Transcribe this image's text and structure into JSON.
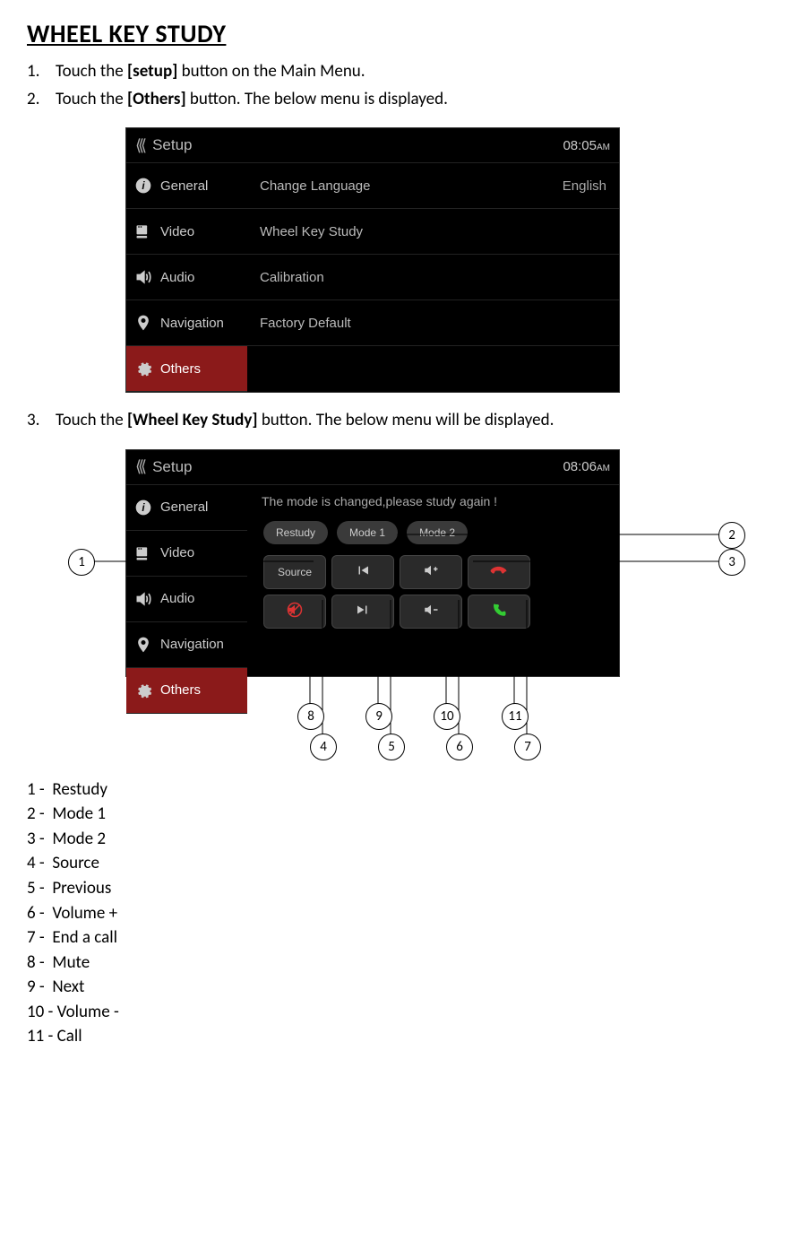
{
  "title": "WHEEL KEY STUDY ",
  "steps_a": [
    {
      "n": "1.",
      "pre": "Touch the ",
      "bold": "[setup]",
      "post": " button on the Main Menu."
    },
    {
      "n": "2.",
      "pre": "Touch the ",
      "bold": "[Others]",
      "post": " button. The below menu is displayed."
    }
  ],
  "step3": {
    "n": "3.",
    "pre": "Touch the ",
    "bold": "[Wheel Key Study]",
    "post": " button. The below menu will be displayed."
  },
  "shot1": {
    "header_title": "Setup",
    "clock": "08:05",
    "clock_sub": "AM",
    "sidebar": [
      {
        "icon": "info",
        "label": "General"
      },
      {
        "icon": "video",
        "label": "Video"
      },
      {
        "icon": "audio",
        "label": "Audio"
      },
      {
        "icon": "nav",
        "label": "Navigation"
      },
      {
        "icon": "gear",
        "label": "Others",
        "selected": true
      }
    ],
    "rows": [
      {
        "label": "Change Language",
        "value": "English"
      },
      {
        "label": "Wheel Key Study",
        "value": ""
      },
      {
        "label": "Calibration",
        "value": ""
      },
      {
        "label": "Factory Default",
        "value": ""
      }
    ]
  },
  "shot2": {
    "header_title": "Setup",
    "clock": "08:06",
    "clock_sub": "AM",
    "sidebar": [
      {
        "icon": "info",
        "label": "General"
      },
      {
        "icon": "video",
        "label": "Video"
      },
      {
        "icon": "audio",
        "label": "Audio"
      },
      {
        "icon": "nav",
        "label": "Navigation"
      },
      {
        "icon": "gear",
        "label": "Others",
        "selected": true
      }
    ],
    "notice": "The mode is changed,please study again !",
    "modes": [
      "Restudy",
      "Mode 1",
      "Mode 2"
    ],
    "grid1": [
      "Source",
      "prev",
      "volup",
      "hangup"
    ],
    "grid2": [
      "mute",
      "next",
      "voldown",
      "call"
    ]
  },
  "callouts": {
    "c1": "1",
    "c2": "2",
    "c3": "3",
    "c4": "4",
    "c5": "5",
    "c6": "6",
    "c7": "7",
    "c8": "8",
    "c9": "9",
    "c10": "10",
    "c11": "11"
  },
  "legend": [
    "1 -  Restudy",
    "2 -  Mode 1",
    "3 -  Mode 2",
    "4 -  Source",
    "5 -  Previous",
    "6 -  Volume +",
    "7 -  End a call",
    "8 -  Mute",
    "9 -  Next",
    "10 - Volume -",
    "11 - Call"
  ]
}
